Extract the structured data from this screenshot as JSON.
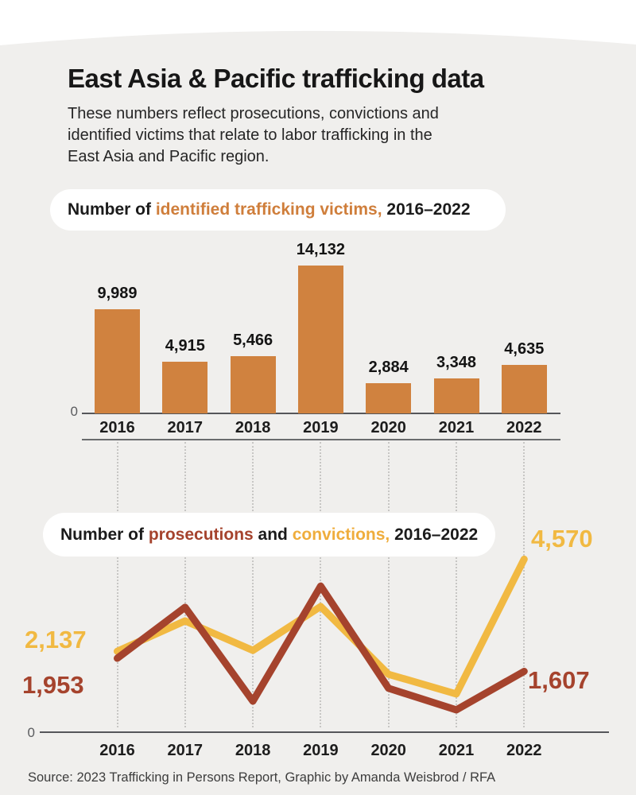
{
  "header": {
    "title": "East Asia & Pacific trafficking data",
    "subtitle": "These numbers reflect prosecutions, convictions and\nidentified victims that relate to labor trafficking in the\nEast Asia and Pacific region."
  },
  "pills": {
    "victims": {
      "prefix": "Number of ",
      "highlight": "identified trafficking victims,",
      "suffix": " 2016–2022"
    },
    "lines": {
      "prefix": "Number of ",
      "prosecutions": "prosecutions",
      "mid": " and ",
      "convictions": "convictions,",
      "suffix": " 2016–2022"
    }
  },
  "chart_data": [
    {
      "type": "bar",
      "title": "Number of identified trafficking victims, 2016–2022",
      "categories": [
        "2016",
        "2017",
        "2018",
        "2019",
        "2020",
        "2021",
        "2022"
      ],
      "values": [
        9989,
        4915,
        5466,
        14132,
        2884,
        3348,
        4635
      ],
      "value_labels": [
        "9,989",
        "4,915",
        "5,466",
        "14,132",
        "2,884",
        "3,348",
        "4,635"
      ],
      "axis_zero_label": "0",
      "ylim": [
        0,
        14132
      ],
      "bar_color": "#d0823f",
      "grid": false
    },
    {
      "type": "line",
      "title": "Number of prosecutions and convictions, 2016–2022",
      "categories": [
        "2016",
        "2017",
        "2018",
        "2019",
        "2020",
        "2021",
        "2022"
      ],
      "series": [
        {
          "name": "prosecutions",
          "color": "#a5432d",
          "values": [
            1953,
            3300,
            820,
            3860,
            1160,
            590,
            1607
          ],
          "first_value_label": "1,953",
          "last_value_label": "1,607"
        },
        {
          "name": "convictions",
          "color": "#f1b942",
          "values": [
            2137,
            2940,
            2160,
            3320,
            1530,
            1010,
            4570
          ],
          "first_value_label": "2,137",
          "last_value_label": "4,570"
        }
      ],
      "axis_zero_label": "0",
      "ylim": [
        0,
        4800
      ],
      "grid": "dotted-vertical"
    }
  ],
  "footer": {
    "source": "Source: 2023 Trafficking in Persons Report, Graphic by Amanda Weisbrod / RFA"
  },
  "colors": {
    "page_background": "#ffffff",
    "panel_background": "#f0efed",
    "bar_orange": "#d0823f",
    "prosecutions_red": "#a5432d",
    "convictions_gold": "#f1b942",
    "pill_highlight_orange": "#cf7e3b",
    "pill_highlight_gold": "#efad3c",
    "axis_gray": "#55565a",
    "dotted_gridline": "#c7c6c4",
    "text_dark": "#171717"
  }
}
